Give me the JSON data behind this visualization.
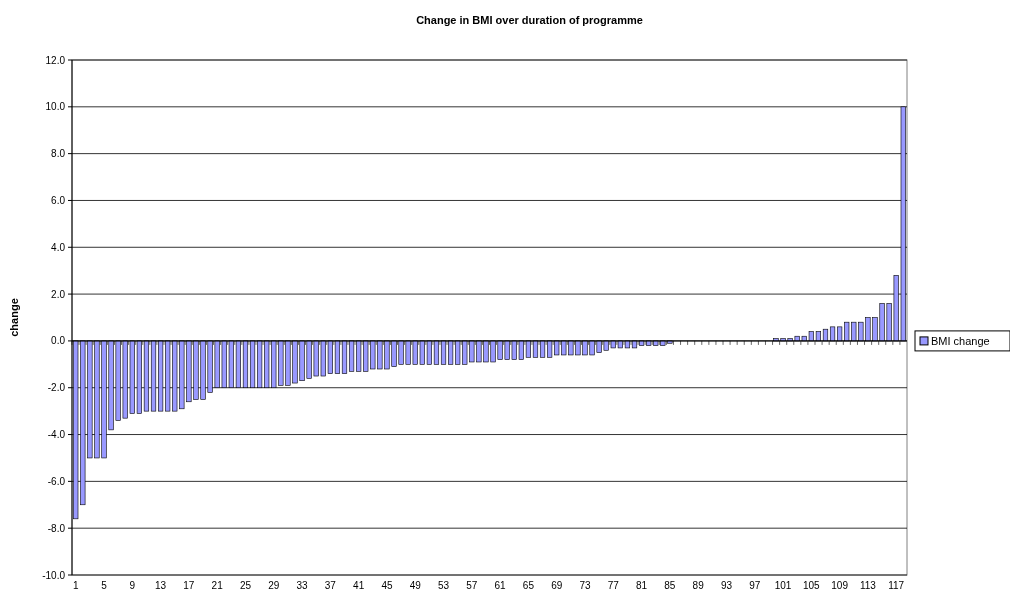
{
  "chart_data": {
    "type": "bar",
    "title": "Change in BMI over duration of programme",
    "ylabel": "change",
    "categories": [
      "1",
      null,
      null,
      null,
      "5",
      null,
      null,
      null,
      "9",
      null,
      null,
      null,
      "13",
      null,
      null,
      null,
      "17",
      null,
      null,
      null,
      "21",
      null,
      null,
      null,
      "25",
      null,
      null,
      null,
      "29",
      null,
      null,
      null,
      "33",
      null,
      null,
      null,
      "37",
      null,
      null,
      null,
      "41",
      null,
      null,
      null,
      "45",
      null,
      null,
      null,
      "49",
      null,
      null,
      null,
      "53",
      null,
      null,
      null,
      "57",
      null,
      null,
      null,
      "61",
      null,
      null,
      null,
      "65",
      null,
      null,
      null,
      "69",
      null,
      null,
      null,
      "73",
      null,
      null,
      null,
      "77",
      null,
      null,
      null,
      "81",
      null,
      null,
      null,
      "85",
      null,
      null,
      null,
      "89",
      null,
      null,
      null,
      "93",
      null,
      null,
      null,
      "97",
      null,
      null,
      null,
      "101",
      null,
      null,
      null,
      "105",
      null,
      null,
      null,
      "109",
      null,
      null,
      null,
      "113",
      null,
      null,
      null,
      "117",
      null
    ],
    "series": [
      {
        "name": "BMI change",
        "color": "#9999ff",
        "values": [
          -7.6,
          -7.0,
          -5.0,
          -5.0,
          -5.0,
          -3.8,
          -3.4,
          -3.3,
          -3.1,
          -3.1,
          -3.0,
          -3.0,
          -3.0,
          -3.0,
          -3.0,
          -2.9,
          -2.6,
          -2.5,
          -2.5,
          -2.2,
          -2.0,
          -2.0,
          -2.0,
          -2.0,
          -2.0,
          -2.0,
          -2.0,
          -2.0,
          -2.0,
          -1.9,
          -1.9,
          -1.8,
          -1.7,
          -1.6,
          -1.5,
          -1.5,
          -1.4,
          -1.4,
          -1.4,
          -1.3,
          -1.3,
          -1.3,
          -1.2,
          -1.2,
          -1.2,
          -1.1,
          -1.0,
          -1.0,
          -1.0,
          -1.0,
          -1.0,
          -1.0,
          -1.0,
          -1.0,
          -1.0,
          -1.0,
          -0.9,
          -0.9,
          -0.9,
          -0.9,
          -0.8,
          -0.8,
          -0.8,
          -0.8,
          -0.7,
          -0.7,
          -0.7,
          -0.7,
          -0.6,
          -0.6,
          -0.6,
          -0.6,
          -0.6,
          -0.6,
          -0.5,
          -0.4,
          -0.3,
          -0.3,
          -0.3,
          -0.3,
          -0.2,
          -0.2,
          -0.2,
          -0.2,
          -0.1,
          0,
          0,
          0,
          0,
          0,
          0,
          0,
          0,
          0,
          0,
          0,
          0,
          0,
          0,
          0.1,
          0.1,
          0.1,
          0.2,
          0.2,
          0.4,
          0.4,
          0.5,
          0.6,
          0.6,
          0.8,
          0.8,
          0.8,
          1.0,
          1.0,
          1.6,
          1.6,
          2.8,
          10.0
        ]
      }
    ],
    "ylim": [
      -10,
      12
    ],
    "yticks": [
      {
        "value": -10,
        "label": "-10.0"
      },
      {
        "value": -8,
        "label": "-8.0"
      },
      {
        "value": -6,
        "label": "-6.0"
      },
      {
        "value": -4,
        "label": "-4.0"
      },
      {
        "value": -2,
        "label": "-2.0"
      },
      {
        "value": 0,
        "label": "0.0"
      },
      {
        "value": 2,
        "label": "2.0"
      },
      {
        "value": 4,
        "label": "4.0"
      },
      {
        "value": 6,
        "label": "6.0"
      },
      {
        "value": 8,
        "label": "8.0"
      },
      {
        "value": 10,
        "label": "10.0"
      },
      {
        "value": 12,
        "label": "12.0"
      }
    ],
    "grid": "y",
    "legend": "right"
  }
}
